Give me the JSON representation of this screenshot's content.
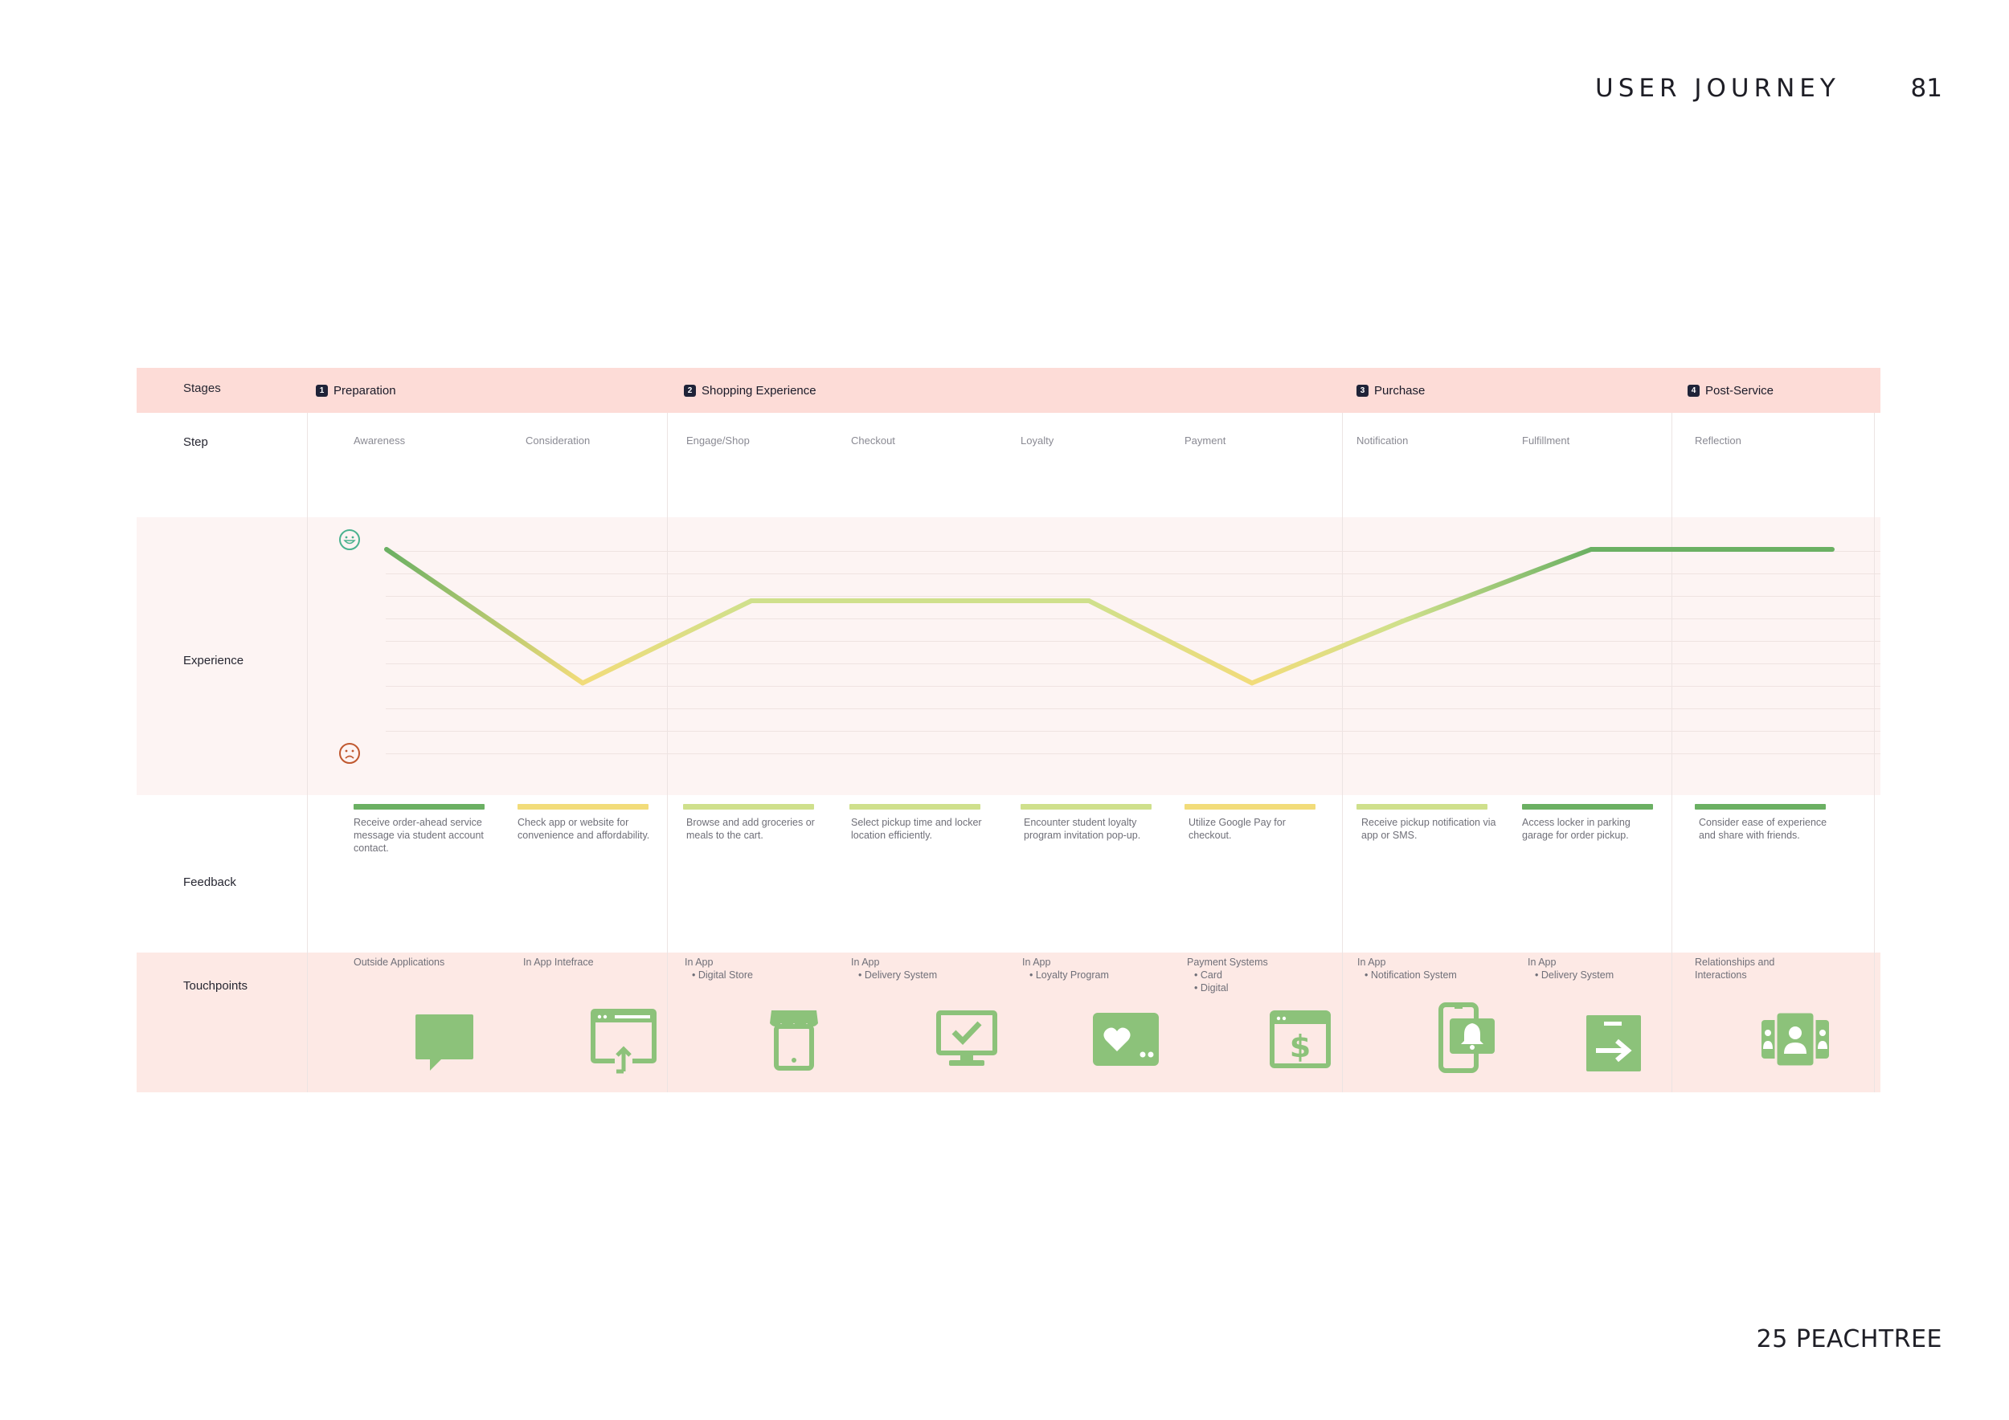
{
  "header": {
    "title": "USER JOURNEY",
    "page_number": "81"
  },
  "footer": {
    "brand": "25 PEACHTREE"
  },
  "journey": {
    "row_labels": {
      "stages": "Stages",
      "step": "Step",
      "experience": "Experience",
      "feedback": "Feedback",
      "touchpoints": "Touchpoints"
    },
    "stages": [
      {
        "num": "1",
        "name": "Preparation"
      },
      {
        "num": "2",
        "name": "Shopping Experience"
      },
      {
        "num": "3",
        "name": "Purchase"
      },
      {
        "num": "4",
        "name": "Post-Service"
      }
    ],
    "steps": [
      "Awareness",
      "Consideration",
      "Engage/Shop",
      "Checkout",
      "Loyalty",
      "Payment",
      "Notification",
      "Fulfillment",
      "Reflection"
    ],
    "feedback": [
      {
        "text": "Receive order-ahead service message via student account contact.",
        "color": "#6bb063"
      },
      {
        "text": "Check app or website for convenience and affordability.",
        "color": "#f2dc7a"
      },
      {
        "text": "Browse and add groceries or meals to the cart.",
        "color": "#cfe08c"
      },
      {
        "text": "Select pickup time and locker location efficiently.",
        "color": "#cfe08c"
      },
      {
        "text": "Encounter student loyalty program invitation pop-up.",
        "color": "#cfe08c"
      },
      {
        "text": "Utilize Google Pay for checkout.",
        "color": "#f2dc7a"
      },
      {
        "text": "Receive pickup notification via app or SMS.",
        "color": "#cfe08c"
      },
      {
        "text": "Access locker in parking garage for order pickup.",
        "color": "#6bb063"
      },
      {
        "text": "Consider ease of experience and share with friends.",
        "color": "#6bb063"
      }
    ],
    "touchpoints": [
      {
        "title": "Outside Applications",
        "sub": [],
        "icon": "chat-bubble-icon"
      },
      {
        "title": "In App Intefrace",
        "sub": [],
        "icon": "browser-upload-icon"
      },
      {
        "title": "In App",
        "sub": [
          "•  Digital Store"
        ],
        "icon": "storefront-icon"
      },
      {
        "title": "In App",
        "sub": [
          "•  Delivery System"
        ],
        "icon": "monitor-check-icon"
      },
      {
        "title": "In App",
        "sub": [
          "•  Loyalty Program"
        ],
        "icon": "heart-card-icon"
      },
      {
        "title": "Payment Systems",
        "sub": [
          "•  Card",
          "•  Digital"
        ],
        "icon": "browser-dollar-icon"
      },
      {
        "title": "In App",
        "sub": [
          "•  Notification System"
        ],
        "icon": "phone-bell-icon"
      },
      {
        "title": "In App",
        "sub": [
          "•  Delivery System"
        ],
        "icon": "door-arrow-icon"
      },
      {
        "title": "Relationships and Interactions",
        "sub": [],
        "icon": "contacts-icon"
      }
    ],
    "chart_data": {
      "type": "line",
      "categories": [
        "Awareness",
        "Consideration",
        "Engage/Shop",
        "Checkout",
        "Loyalty",
        "Payment",
        "Notification",
        "Fulfillment",
        "Reflection"
      ],
      "series": [
        {
          "values": [
            10,
            3.5,
            7.5,
            7.5,
            7.5,
            3.5,
            6.5,
            10,
            10
          ]
        }
      ],
      "ylim": [
        0,
        10
      ],
      "scale_icons": {
        "top": "happy-face-icon",
        "bottom": "sad-face-icon"
      },
      "colors": {
        "high": "#6bb063",
        "mid": "#cfe08c",
        "low": "#f2dc7a"
      }
    },
    "colors": {
      "icon_green": "#8cc27a"
    }
  }
}
